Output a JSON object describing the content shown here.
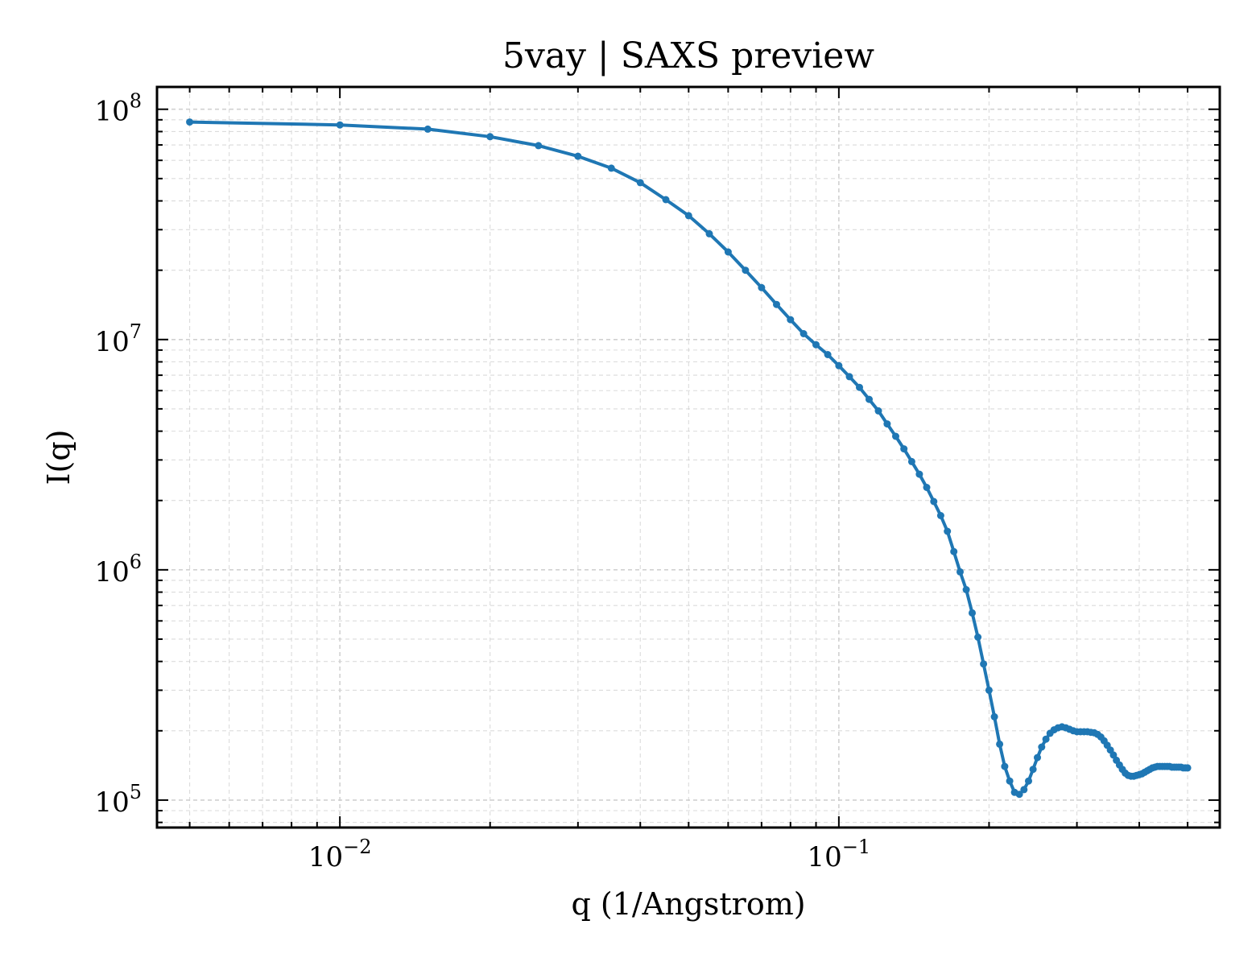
{
  "chart_data": {
    "type": "line",
    "title": "5vay | SAXS preview",
    "xlabel": "q (1/Angstrom)",
    "ylabel": "I(q)",
    "xscale": "log",
    "yscale": "log",
    "xlim": [
      0.0043,
      0.58
    ],
    "ylim": [
      76000,
      125000000
    ],
    "grid": true,
    "x_tick_labels": [
      {
        "value": 0.01,
        "base": "10",
        "exp": "−2"
      },
      {
        "value": 0.1,
        "base": "10",
        "exp": "−1"
      }
    ],
    "y_tick_labels": [
      {
        "value": 100000,
        "base": "10",
        "exp": "5"
      },
      {
        "value": 1000000,
        "base": "10",
        "exp": "6"
      },
      {
        "value": 10000000,
        "base": "10",
        "exp": "7"
      },
      {
        "value": 100000000,
        "base": "10",
        "exp": "8"
      }
    ],
    "colors": {
      "line": "#1f77b4",
      "grid": "#cccccc",
      "axes": "#000000"
    },
    "series": [
      {
        "x": [
          0.005,
          0.01,
          0.015,
          0.02,
          0.025,
          0.03,
          0.035,
          0.04,
          0.045,
          0.05,
          0.055,
          0.06,
          0.065,
          0.07,
          0.075,
          0.08,
          0.085,
          0.09,
          0.095,
          0.1,
          0.105,
          0.11,
          0.115,
          0.12,
          0.125,
          0.13,
          0.135,
          0.14,
          0.145,
          0.15,
          0.155,
          0.16,
          0.165,
          0.17,
          0.175,
          0.18,
          0.185,
          0.19,
          0.195,
          0.2,
          0.205,
          0.21,
          0.215,
          0.22,
          0.225,
          0.23,
          0.235,
          0.24,
          0.245,
          0.25,
          0.255,
          0.26,
          0.265,
          0.27,
          0.275,
          0.28,
          0.285,
          0.29,
          0.295,
          0.3,
          0.305,
          0.31,
          0.315,
          0.32,
          0.325,
          0.33,
          0.335,
          0.34,
          0.345,
          0.35,
          0.355,
          0.36,
          0.365,
          0.37,
          0.375,
          0.38,
          0.385,
          0.39,
          0.395,
          0.4,
          0.405,
          0.41,
          0.415,
          0.42,
          0.425,
          0.43,
          0.435,
          0.44,
          0.445,
          0.45,
          0.455,
          0.46,
          0.465,
          0.47,
          0.475,
          0.48,
          0.485,
          0.49,
          0.495,
          0.5
        ],
        "y": [
          88000000,
          85500000,
          82000000,
          76000000,
          69500000,
          62500000,
          55500000,
          48000000,
          40500000,
          34500000,
          28800000,
          24000000,
          20000000,
          16800000,
          14200000,
          12200000,
          10600000,
          9500000,
          8600000,
          7700000,
          6900000,
          6200000,
          5500000,
          4900000,
          4300000,
          3800000,
          3350000,
          2950000,
          2600000,
          2280000,
          1980000,
          1720000,
          1470000,
          1200000,
          980000,
          820000,
          650000,
          510000,
          390000,
          300000,
          230000,
          175000,
          140000,
          121000,
          108000,
          106000,
          111000,
          121000,
          136000,
          153000,
          170000,
          184000,
          195000,
          202000,
          206000,
          208000,
          206000,
          203000,
          200000,
          198000,
          198000,
          198000,
          198000,
          197000,
          196000,
          193000,
          188000,
          181000,
          173000,
          165000,
          157000,
          149000,
          142000,
          136000,
          131000,
          128000,
          127000,
          127000,
          128000,
          129000,
          130000,
          132000,
          134000,
          136000,
          138000,
          139000,
          140000,
          140000,
          140000,
          140000,
          140000,
          140000,
          139000,
          139000,
          139000,
          139000,
          139000,
          138000,
          138000,
          138000
        ]
      }
    ]
  }
}
